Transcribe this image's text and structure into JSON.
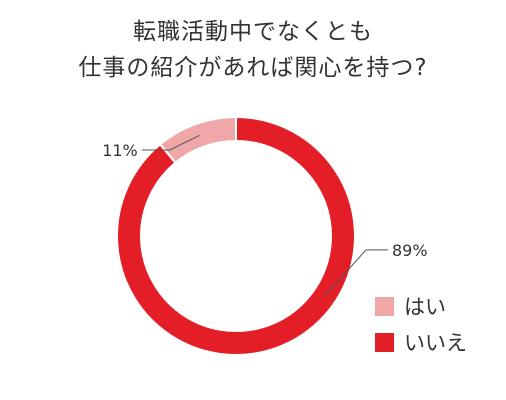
{
  "title_lines": [
    "転職活動中でなくとも",
    "仕事の紹介があれば関心を持つ?"
  ],
  "chart_data": {
    "type": "pie",
    "variant": "donut",
    "categories": [
      "はい",
      "いいえ"
    ],
    "values": [
      11,
      89
    ],
    "value_labels": [
      "11%",
      "89%"
    ],
    "colors": [
      "#f0a7a8",
      "#e31e27"
    ],
    "legend": "bottom-right"
  }
}
